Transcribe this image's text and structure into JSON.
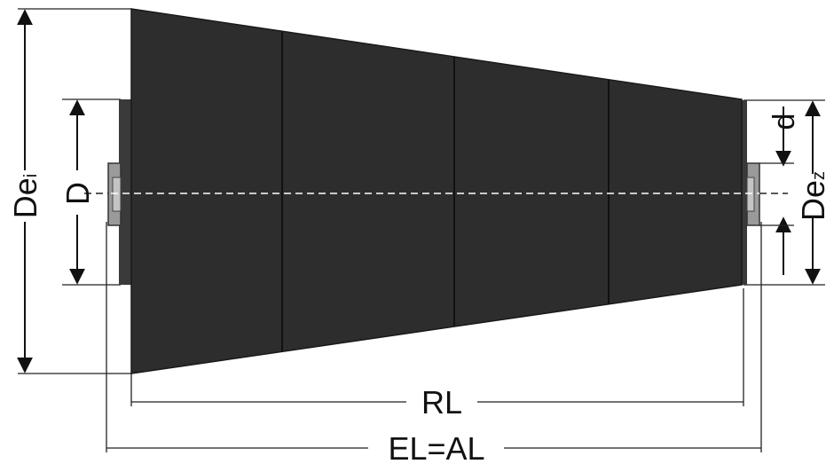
{
  "diagram": {
    "labels": {
      "de_i_main": "De",
      "de_i_sub": "i",
      "d_upper": "D",
      "d_lower": "d",
      "de_z_main": "De",
      "de_z_sub": "z",
      "rl": "RL",
      "el_al": "EL=AL"
    },
    "colors": {
      "body": "#2d2d2d",
      "segment_line": "#111111",
      "shaft": "#9a9a9a",
      "dimension_line": "#111111"
    },
    "segments": 4
  }
}
